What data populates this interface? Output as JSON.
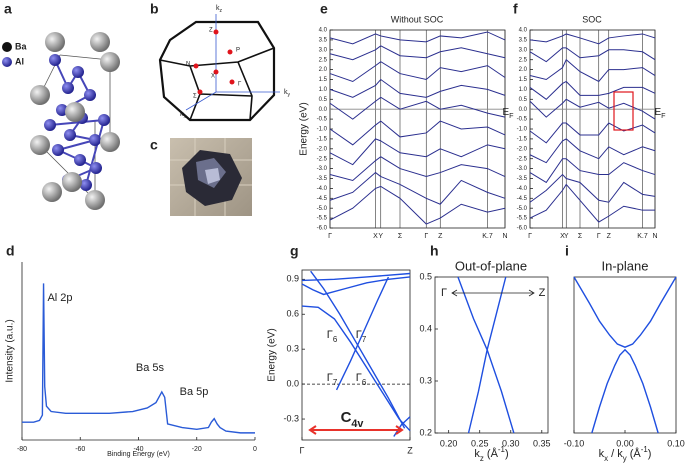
{
  "illustrations": {
    "a": {
      "panel": "a",
      "legend": [
        "Ba",
        "Al"
      ]
    },
    "b": {
      "panel": "b",
      "axes": [
        [
          {
            "text": "k"
          },
          {
            "text": "z",
            "style": "sub"
          }
        ],
        [
          {
            "text": "k"
          },
          {
            "text": "y",
            "style": "sub"
          }
        ],
        [
          {
            "text": "k"
          },
          {
            "text": "x",
            "style": "sub"
          }
        ]
      ],
      "points": [
        "Z",
        "P",
        "N",
        "X",
        "Γ",
        "Σ"
      ]
    },
    "c": {
      "panel": "c"
    }
  },
  "chart_data": [
    {
      "type": "line",
      "panel": "d",
      "xlabel": [
        {
          "text": "Binding Energy (eV)"
        }
      ],
      "ylabel": "Intensity (a.u.)",
      "frame": false,
      "color": "#2a5bd7",
      "xlim": [
        -80,
        0
      ],
      "xticks": [
        -80,
        -60,
        -40,
        -20,
        0
      ],
      "ylim": [
        0,
        1
      ],
      "series": [
        {
          "x": [
            -80,
            -76,
            -74,
            -73,
            -72.6,
            -72.2,
            -71.6,
            -70,
            -65,
            -60,
            -50,
            -42,
            -37,
            -34,
            -32,
            -31,
            -30,
            -25,
            -20,
            -16,
            -15,
            -14,
            -13,
            -12,
            -10,
            -5,
            0
          ],
          "values": [
            0.1,
            0.1,
            0.11,
            0.14,
            0.88,
            0.3,
            0.19,
            0.16,
            0.15,
            0.15,
            0.15,
            0.16,
            0.18,
            0.21,
            0.27,
            0.24,
            0.09,
            0.07,
            0.06,
            0.07,
            0.1,
            0.12,
            0.09,
            0.07,
            0.05,
            0.04,
            0.04
          ]
        }
      ],
      "annotations": [
        {
          "parts": [
            {
              "text": "Al 2p"
            }
          ]
        },
        {
          "parts": [
            {
              "text": "Ba 5s"
            }
          ]
        },
        {
          "parts": [
            {
              "text": "Ba 5p"
            }
          ]
        }
      ]
    },
    {
      "type": "line",
      "panel": "e",
      "title": "Without SOC",
      "ylabel": "Energy (eV)",
      "frame": true,
      "xgrid": true,
      "reference_line": 0,
      "color": "#2b2f8f",
      "xlim": [
        0,
        1
      ],
      "xticks": [
        {
          "value": 0,
          "label": "Γ"
        },
        {
          "value": 0.26,
          "label": "X"
        },
        {
          "value": 0.29,
          "label": "Y"
        },
        {
          "value": 0.4,
          "label": "Σ"
        },
        {
          "value": 0.55,
          "label": "Γ"
        },
        {
          "value": 0.63,
          "label": "Z"
        },
        {
          "value": 0.9,
          "label": "K.7"
        },
        {
          "value": 1,
          "label": "N"
        }
      ],
      "ylim": [
        -6,
        4
      ],
      "yticks": [
        {
          "value": -6,
          "label": "-6.0"
        },
        -5.5,
        {
          "value": -5,
          "label": "-5.0"
        },
        -4.5,
        {
          "value": -4,
          "label": "-4.0"
        },
        -3.5,
        {
          "value": -3,
          "label": "-3.0"
        },
        -2.5,
        {
          "value": -2,
          "label": "-2.0"
        },
        -1.5,
        {
          "value": -1,
          "label": "-1.0"
        },
        -0.5,
        {
          "value": 0,
          "label": "0.0"
        },
        0.5,
        {
          "value": 1,
          "label": "1.0"
        },
        1.5,
        {
          "value": 2,
          "label": "2.0"
        },
        2.5,
        {
          "value": 3,
          "label": "3.0"
        },
        3.5,
        {
          "value": 4,
          "label": "4.0"
        }
      ],
      "x": [
        0,
        0.13,
        0.26,
        0.29,
        0.4,
        0.55,
        0.63,
        0.75,
        0.9,
        1
      ],
      "series": [
        {
          "values": [
            -5.6,
            -5.0,
            -4.0,
            -3.9,
            -4.5,
            -5.8,
            -5.5,
            -4.8,
            -5.2,
            -5.0
          ]
        },
        {
          "values": [
            -4.6,
            -4.2,
            -3.2,
            -3.4,
            -3.8,
            -4.5,
            -4.8,
            -3.6,
            -4.2,
            -4.5
          ]
        },
        {
          "values": [
            -3.3,
            -3.6,
            -2.6,
            -2.4,
            -3.0,
            -3.4,
            -3.2,
            -2.8,
            -3.0,
            -3.4
          ]
        },
        {
          "values": [
            -2.2,
            -2.8,
            -1.5,
            -1.6,
            -2.2,
            -2.4,
            -2.0,
            -2.4,
            -1.8,
            -2.0
          ]
        },
        {
          "values": [
            -1.0,
            -1.8,
            -0.8,
            -0.6,
            -1.4,
            -1.2,
            -0.6,
            -1.0,
            -0.9,
            -1.3
          ]
        },
        {
          "values": [
            0.3,
            -0.5,
            0.4,
            0.6,
            0.0,
            0.4,
            0.0,
            0.2,
            -0.2,
            -0.4
          ]
        },
        {
          "values": [
            1.0,
            0.6,
            1.2,
            1.5,
            0.8,
            0.6,
            0.9,
            1.2,
            1.0,
            0.7
          ]
        },
        {
          "values": [
            1.8,
            1.4,
            2.2,
            2.4,
            1.8,
            1.5,
            2.1,
            1.9,
            2.2,
            1.6
          ]
        },
        {
          "values": [
            2.8,
            2.5,
            3.0,
            3.2,
            2.7,
            2.6,
            2.9,
            3.1,
            2.8,
            2.6
          ]
        },
        {
          "values": [
            3.6,
            3.3,
            3.8,
            3.7,
            3.5,
            3.4,
            3.7,
            3.6,
            3.9,
            3.5
          ]
        }
      ],
      "annotations": [
        {
          "parts": [
            {
              "text": "E"
            },
            {
              "text": "F",
              "style": "sub"
            }
          ]
        }
      ]
    },
    {
      "type": "line",
      "panel": "f",
      "title": "SOC",
      "frame": true,
      "xgrid": true,
      "reference_line": 0,
      "color": "#2b2f8f",
      "xlim": [
        0,
        1
      ],
      "xticks": [
        {
          "value": 0,
          "label": "Γ"
        },
        {
          "value": 0.26,
          "label": "X"
        },
        {
          "value": 0.29,
          "label": "Y"
        },
        {
          "value": 0.4,
          "label": "Σ"
        },
        {
          "value": 0.55,
          "label": "Γ"
        },
        {
          "value": 0.63,
          "label": "Z"
        },
        {
          "value": 0.9,
          "label": "K.7"
        },
        {
          "value": 1,
          "label": "N"
        }
      ],
      "ylim": [
        -6,
        4
      ],
      "yticks": [
        {
          "value": -6,
          "label": "-6.0"
        },
        -5.5,
        {
          "value": -5,
          "label": "-5.0"
        },
        -4.5,
        {
          "value": -4,
          "label": "-4.0"
        },
        -3.5,
        {
          "value": -3,
          "label": "-3.0"
        },
        -2.5,
        {
          "value": -2,
          "label": "-2.0"
        },
        -1.5,
        {
          "value": -1,
          "label": "-1.0"
        },
        -0.5,
        {
          "value": 0,
          "label": "0.0"
        },
        0.5,
        {
          "value": 1,
          "label": "1.0"
        },
        1.5,
        {
          "value": 2,
          "label": "2.0"
        },
        2.5,
        {
          "value": 3,
          "label": "3.0"
        },
        3.5,
        {
          "value": 4,
          "label": "4.0"
        }
      ],
      "x": [
        0,
        0.13,
        0.26,
        0.29,
        0.4,
        0.55,
        0.63,
        0.75,
        0.9,
        1
      ],
      "series": [
        {
          "values": [
            -5.5,
            -5.1,
            -4.1,
            -3.8,
            -4.6,
            -5.7,
            -5.4,
            -4.9,
            -5.1,
            -5.1
          ]
        },
        {
          "values": [
            -4.7,
            -4.1,
            -3.3,
            -3.5,
            -3.7,
            -4.6,
            -4.7,
            -3.7,
            -4.3,
            -4.4
          ]
        },
        {
          "values": [
            -3.2,
            -3.7,
            -2.5,
            -2.5,
            -3.1,
            -3.3,
            -3.3,
            -2.7,
            -3.1,
            -3.3
          ]
        },
        {
          "values": [
            -2.3,
            -2.7,
            -1.6,
            -1.5,
            -2.1,
            -2.5,
            -1.9,
            -2.3,
            -1.9,
            -2.1
          ]
        },
        {
          "values": [
            -1.1,
            -1.7,
            -0.7,
            -0.7,
            -1.3,
            -1.3,
            -0.7,
            -1.1,
            -0.8,
            -1.2
          ]
        },
        {
          "values": [
            0.4,
            -0.4,
            0.3,
            0.5,
            0.1,
            0.35,
            0.05,
            0.3,
            -0.1,
            -0.5
          ]
        },
        {
          "values": [
            1.1,
            0.5,
            1.3,
            1.4,
            0.7,
            0.7,
            0.8,
            1.1,
            1.1,
            0.8
          ]
        },
        {
          "values": [
            1.7,
            1.5,
            2.1,
            2.5,
            1.9,
            1.4,
            2.0,
            2.0,
            2.1,
            1.7
          ]
        },
        {
          "values": [
            2.9,
            2.4,
            3.1,
            3.1,
            2.6,
            2.7,
            3.0,
            3.0,
            2.9,
            2.5
          ]
        },
        {
          "values": [
            3.5,
            3.4,
            3.7,
            3.8,
            3.6,
            3.3,
            3.6,
            3.7,
            3.8,
            3.6
          ]
        }
      ],
      "annotations": [
        {
          "parts": [
            {
              "text": "E"
            },
            {
              "text": "F",
              "style": "sub"
            }
          ]
        }
      ]
    },
    {
      "type": "line",
      "panel": "g",
      "ylabel": "Energy (eV)",
      "frame": true,
      "reference_line": 0,
      "color": "#1f4fe0",
      "xlim": [
        0,
        1
      ],
      "xticks": [
        {
          "value": 0,
          "label": "Γ"
        },
        {
          "value": 1,
          "label": "Z"
        }
      ],
      "ylim": [
        -0.48,
        0.98
      ],
      "yticks": [
        -0.3,
        {
          "value": 0,
          "label": "0.0"
        },
        0.3,
        0.6,
        0.9
      ],
      "series": [
        {
          "x": [
            0,
            0.1,
            0.2,
            0.4,
            0.6,
            0.8,
            1
          ],
          "values": [
            0.86,
            0.81,
            0.77,
            0.82,
            0.87,
            0.9,
            0.92
          ]
        },
        {
          "x": [
            0,
            0.3,
            0.6,
            1
          ],
          "values": [
            0.89,
            0.9,
            0.92,
            0.95
          ]
        },
        {
          "x": [
            0,
            0.15,
            0.3,
            0.45,
            0.6,
            0.75,
            0.9,
            1
          ],
          "values": [
            0.67,
            0.66,
            0.56,
            0.36,
            0.14,
            -0.08,
            -0.3,
            -0.4
          ]
        },
        {
          "x": [
            0.08,
            0.2,
            0.35,
            0.5,
            0.65,
            0.8,
            0.95
          ],
          "values": [
            0.97,
            0.82,
            0.6,
            0.36,
            0.12,
            -0.12,
            -0.38
          ]
        },
        {
          "x": [
            0.32,
            0.45,
            0.58,
            0.7,
            0.8
          ],
          "values": [
            -0.05,
            0.2,
            0.47,
            0.72,
            0.92
          ]
        },
        {
          "x": [
            0.85,
            0.92,
            1
          ],
          "values": [
            -0.45,
            -0.35,
            -0.28
          ]
        }
      ],
      "annotations": [
        {
          "parts": [
            {
              "text": "Γ"
            },
            {
              "text": "6",
              "style": "sub"
            }
          ]
        },
        {
          "parts": [
            {
              "text": "Γ"
            },
            {
              "text": "7",
              "style": "sub"
            }
          ]
        },
        {
          "parts": [
            {
              "text": "Γ"
            },
            {
              "text": "7",
              "style": "sub"
            }
          ]
        },
        {
          "parts": [
            {
              "text": "Γ"
            },
            {
              "text": "6",
              "style": "sub"
            }
          ]
        },
        {
          "parts": [
            {
              "text": "C"
            },
            {
              "text": "4v",
              "style": "sub"
            }
          ],
          "color": "#e8322b"
        }
      ]
    },
    {
      "type": "line",
      "panel": "h",
      "title": "Out-of-plane",
      "frame": true,
      "color": "#1f4fe0",
      "xlabel": [
        {
          "text": "k"
        },
        {
          "text": "z",
          "style": "sub"
        },
        {
          "text": " (Å"
        },
        {
          "text": "-1",
          "style": "sup"
        },
        {
          "text": ")"
        }
      ],
      "xlim": [
        0.178,
        0.36
      ],
      "xticks": [
        {
          "value": 0.2,
          "label": "0.20"
        },
        0.25,
        {
          "value": 0.3,
          "label": "0.30"
        },
        0.35
      ],
      "ylim": [
        0.2,
        0.5
      ],
      "yticks": [
        0.2,
        0.3,
        0.4,
        0.5
      ],
      "series": [
        {
          "x": [
            0.215,
            0.24,
            0.262,
            0.285,
            0.305
          ],
          "values": [
            0.5,
            0.42,
            0.36,
            0.28,
            0.2
          ]
        },
        {
          "x": [
            0.232,
            0.248,
            0.262,
            0.277,
            0.292
          ],
          "values": [
            0.2,
            0.28,
            0.36,
            0.43,
            0.5
          ]
        }
      ],
      "annotations": [
        {
          "parts": [
            {
              "text": "Γ"
            }
          ]
        },
        {
          "parts": [
            {
              "text": "Z"
            }
          ]
        }
      ]
    },
    {
      "type": "line",
      "panel": "i",
      "title": "In-plane",
      "frame": true,
      "color": "#1f4fe0",
      "xlabel": [
        {
          "text": "k"
        },
        {
          "text": "x",
          "style": "sub"
        },
        {
          "text": " / k"
        },
        {
          "text": "y",
          "style": "sub"
        },
        {
          "text": " (Å"
        },
        {
          "text": "-1",
          "style": "sup"
        },
        {
          "text": ")"
        }
      ],
      "xlim": [
        -0.1,
        0.1
      ],
      "xticks": [
        {
          "value": -0.1,
          "label": "-0.10"
        },
        {
          "value": 0,
          "label": "0.00"
        },
        {
          "value": 0.1,
          "label": "0.10"
        }
      ],
      "ylim": [
        0.2,
        0.5
      ],
      "series": [
        {
          "x": [
            -0.1,
            -0.07,
            -0.05,
            -0.03,
            -0.015,
            0,
            0.015,
            0.03,
            0.05,
            0.07,
            0.1
          ],
          "values": [
            0.5,
            0.45,
            0.415,
            0.388,
            0.371,
            0.365,
            0.371,
            0.388,
            0.415,
            0.45,
            0.5
          ]
        },
        {
          "x": [
            -0.065,
            -0.05,
            -0.035,
            -0.02,
            -0.01,
            0,
            0.01,
            0.02,
            0.035,
            0.05,
            0.065
          ],
          "values": [
            0.2,
            0.25,
            0.295,
            0.33,
            0.35,
            0.36,
            0.35,
            0.33,
            0.295,
            0.25,
            0.2
          ]
        }
      ]
    }
  ]
}
